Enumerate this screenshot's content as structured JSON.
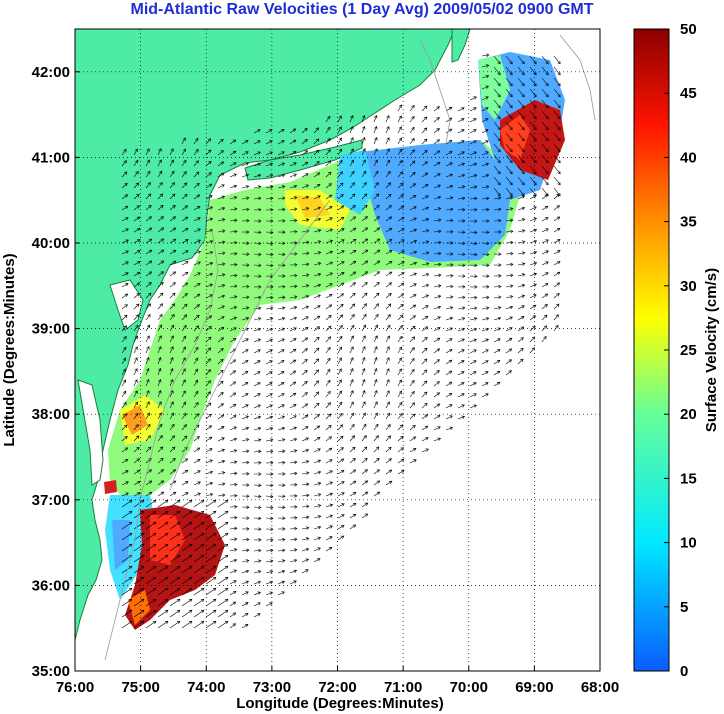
{
  "title": "Mid-Atlantic Raw Velocities (1 Day Avg) 2009/05/02 0900 GMT",
  "map": {
    "xlabel": "Longitude (Degrees:Minutes)",
    "ylabel": "Latitude (Degrees:Minutes)",
    "lon_ticks": [
      "76:00",
      "75:00",
      "74:00",
      "73:00",
      "72:00",
      "71:00",
      "70:00",
      "69:00",
      "68:00"
    ],
    "lat_ticks": [
      "42:00",
      "41:00",
      "40:00",
      "39:00",
      "38:00",
      "37:00",
      "36:00",
      "35:00"
    ],
    "lon_range": [
      -76,
      -68
    ],
    "lat_range": [
      35,
      42.5
    ],
    "land_color": "#4deba5",
    "grid": "dotted"
  },
  "colorbar": {
    "label": "Surface Velocity (cm/s)",
    "ticks": [
      "50",
      "45",
      "40",
      "35",
      "30",
      "25",
      "20",
      "15",
      "10",
      "5",
      "0"
    ],
    "range": [
      0,
      50
    ]
  }
}
